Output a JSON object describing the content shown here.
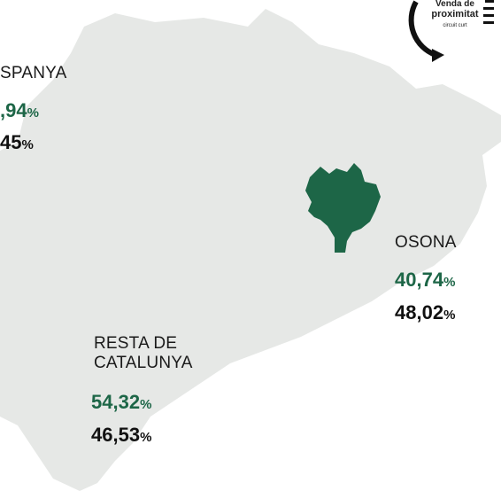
{
  "logo": {
    "line1": "Venda de",
    "line2": "proximitat",
    "line3": "circuit curt"
  },
  "regions": [
    {
      "name": "SPANYA",
      "green": {
        "value": ",94",
        "unit": "%"
      },
      "black": {
        "value": "45",
        "unit": "%"
      }
    },
    {
      "name": "OSONA",
      "green": {
        "value": "40,74",
        "unit": "%"
      },
      "black": {
        "value": "48,02",
        "unit": "%"
      }
    },
    {
      "name": "RESTA DE CATALUNYA",
      "green": {
        "value": "54,32",
        "unit": "%"
      },
      "black": {
        "value": "46,53",
        "unit": "%"
      }
    }
  ]
}
